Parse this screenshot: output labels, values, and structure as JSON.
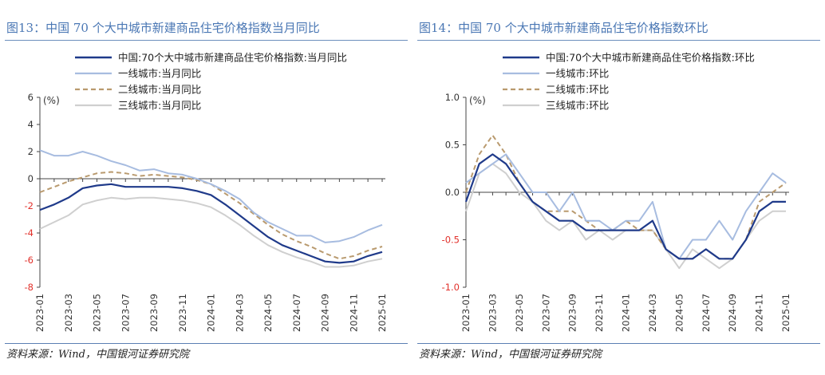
{
  "figures": [
    {
      "title": "图13：中国 70 个大中城市新建商品住宅价格指数当月同比",
      "source": "资料来源：Wind，中国银河证券研究院"
    },
    {
      "title": "图14：中国 70 个大中城市新建商品住宅价格指数环比",
      "source": "资料来源：Wind，中国银河证券研究院"
    }
  ],
  "chart_data": [
    {
      "type": "line",
      "unit": "(%)",
      "ylim": [
        -8,
        6
      ],
      "yticks": [
        6,
        4,
        2,
        0,
        -2,
        -4,
        -6,
        -8
      ],
      "grid": false,
      "legend_position": "top",
      "x": [
        "2023-01",
        "2023-02",
        "2023-03",
        "2023-04",
        "2023-05",
        "2023-06",
        "2023-07",
        "2023-08",
        "2023-09",
        "2023-10",
        "2023-11",
        "2023-12",
        "2024-01",
        "2024-02",
        "2024-03",
        "2024-04",
        "2024-05",
        "2024-06",
        "2024-07",
        "2024-08",
        "2024-09",
        "2024-10",
        "2024-11",
        "2024-12",
        "2025-01"
      ],
      "xticks": [
        "2023-01",
        "2023-03",
        "2023-05",
        "2023-07",
        "2023-09",
        "2023-11",
        "2024-01",
        "2024-03",
        "2024-05",
        "2024-07",
        "2024-09",
        "2024-11",
        "2025-01"
      ],
      "series": [
        {
          "name": "中国:70个大中城市新建商品住宅价格指数:当月同比",
          "color": "#1f3a8a",
          "style": "solid",
          "width": 2.2,
          "values": [
            -2.3,
            -1.9,
            -1.4,
            -0.7,
            -0.5,
            -0.4,
            -0.6,
            -0.6,
            -0.6,
            -0.6,
            -0.7,
            -0.9,
            -1.2,
            -1.9,
            -2.7,
            -3.5,
            -4.3,
            -4.9,
            -5.3,
            -5.7,
            -6.1,
            -6.2,
            -6.1,
            -5.7,
            -5.4
          ]
        },
        {
          "name": "一线城市:当月同比",
          "color": "#a7bce0",
          "style": "solid",
          "width": 2,
          "values": [
            2.1,
            1.7,
            1.7,
            2.0,
            1.7,
            1.3,
            1.0,
            0.6,
            0.7,
            0.4,
            0.3,
            0.0,
            -0.4,
            -0.9,
            -1.5,
            -2.5,
            -3.2,
            -3.7,
            -4.2,
            -4.2,
            -4.7,
            -4.6,
            -4.3,
            -3.8,
            -3.4
          ]
        },
        {
          "name": "二线城市:当月同比",
          "color": "#b99a6e",
          "style": "dashed",
          "width": 2,
          "values": [
            -1.0,
            -0.6,
            -0.2,
            0.1,
            0.4,
            0.5,
            0.4,
            0.2,
            0.3,
            0.2,
            0.1,
            -0.1,
            -0.4,
            -1.1,
            -1.8,
            -2.6,
            -3.4,
            -4.1,
            -4.6,
            -5.0,
            -5.5,
            -5.9,
            -5.7,
            -5.3,
            -5.0
          ]
        },
        {
          "name": "三线城市:当月同比",
          "color": "#cfcfcf",
          "style": "solid",
          "width": 2,
          "values": [
            -3.7,
            -3.2,
            -2.7,
            -1.9,
            -1.6,
            -1.4,
            -1.5,
            -1.4,
            -1.4,
            -1.5,
            -1.6,
            -1.8,
            -2.1,
            -2.7,
            -3.4,
            -4.2,
            -4.9,
            -5.4,
            -5.8,
            -6.1,
            -6.5,
            -6.5,
            -6.4,
            -6.1,
            -5.9
          ]
        }
      ]
    },
    {
      "type": "line",
      "unit": "(%)",
      "ylim": [
        -1.0,
        1.0
      ],
      "yticks": [
        "1.0",
        "0.5",
        "0.0",
        "-0.5",
        "-1.0"
      ],
      "grid": false,
      "legend_position": "top",
      "x": [
        "2023-01",
        "2023-02",
        "2023-03",
        "2023-04",
        "2023-05",
        "2023-06",
        "2023-07",
        "2023-08",
        "2023-09",
        "2023-10",
        "2023-11",
        "2023-12",
        "2024-01",
        "2024-02",
        "2024-03",
        "2024-04",
        "2024-05",
        "2024-06",
        "2024-07",
        "2024-08",
        "2024-09",
        "2024-10",
        "2024-11",
        "2024-12",
        "2025-01"
      ],
      "xticks": [
        "2023-01",
        "2023-03",
        "2023-05",
        "2023-07",
        "2023-09",
        "2023-11",
        "2024-01",
        "2024-03",
        "2024-05",
        "2024-07",
        "2024-09",
        "2024-11",
        "2025-01"
      ],
      "series": [
        {
          "name": "中国:70个大中城市新建商品住宅价格指数:环比",
          "color": "#1f3a8a",
          "style": "solid",
          "width": 2.2,
          "values": [
            -0.1,
            0.3,
            0.4,
            0.3,
            0.1,
            -0.1,
            -0.2,
            -0.3,
            -0.3,
            -0.4,
            -0.4,
            -0.4,
            -0.4,
            -0.4,
            -0.3,
            -0.6,
            -0.7,
            -0.7,
            -0.6,
            -0.7,
            -0.7,
            -0.5,
            -0.2,
            -0.1,
            -0.1
          ]
        },
        {
          "name": "一线城市:环比",
          "color": "#a7bce0",
          "style": "solid",
          "width": 2,
          "values": [
            0.1,
            0.2,
            0.3,
            0.4,
            0.2,
            0.0,
            0.0,
            -0.2,
            0.0,
            -0.3,
            -0.3,
            -0.4,
            -0.3,
            -0.3,
            -0.1,
            -0.6,
            -0.7,
            -0.5,
            -0.5,
            -0.3,
            -0.5,
            -0.2,
            0.0,
            0.2,
            0.1
          ]
        },
        {
          "name": "二线城市:环比",
          "color": "#b99a6e",
          "style": "dashed",
          "width": 2,
          "values": [
            0.0,
            0.4,
            0.6,
            0.4,
            0.1,
            -0.1,
            -0.2,
            -0.2,
            -0.2,
            -0.3,
            -0.4,
            -0.4,
            -0.3,
            -0.4,
            -0.4,
            -0.6,
            -0.7,
            -0.7,
            -0.6,
            -0.7,
            -0.7,
            -0.5,
            -0.1,
            0.0,
            0.1
          ]
        },
        {
          "name": "三线城市:环比",
          "color": "#cfcfcf",
          "style": "solid",
          "width": 2,
          "values": [
            -0.2,
            0.2,
            0.3,
            0.2,
            0.0,
            -0.1,
            -0.3,
            -0.4,
            -0.3,
            -0.5,
            -0.4,
            -0.5,
            -0.4,
            -0.4,
            -0.4,
            -0.6,
            -0.8,
            -0.6,
            -0.7,
            -0.8,
            -0.7,
            -0.5,
            -0.3,
            -0.2,
            -0.2
          ]
        }
      ]
    }
  ],
  "colors": {
    "title": "#4a77b4",
    "rule": "#6d8fbd",
    "tick_negative": "#e2312b",
    "tick_positive": "#333333",
    "axis": "#444444"
  }
}
